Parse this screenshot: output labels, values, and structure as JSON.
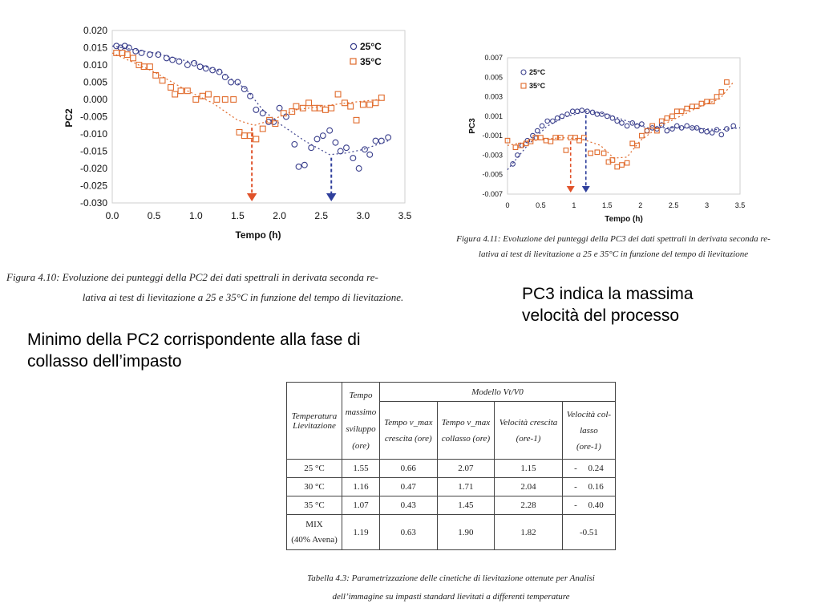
{
  "figure_pc2": {
    "caption_line1": "Figura 4.10: Evoluzione dei punteggi della PC2 dei dati spettrali in derivata seconda re-",
    "caption_line2": "lativa ai test di lievitazione a 25 e 35°C in funzione del tempo di lievitazione."
  },
  "figure_pc3": {
    "caption_line1": "Figura 4.11: Evoluzione dei punteggi della PC3 dei dati spettrali in derivata seconda re-",
    "caption_line2": "lativa ai test di lievitazione a 25 e 35°C in funzione del tempo di lievitazione"
  },
  "notes": {
    "pc3_line1": "PC3 indica la massima",
    "pc3_line2": "velocità del processo",
    "pc2_line1": "Minimo della PC2 corrispondente alla fase di",
    "pc2_line2": "collasso dell’impasto"
  },
  "table": {
    "header": {
      "temp_line1": "Temperatura",
      "temp_line2": "Lievitazione",
      "tmax_line1": "Tempo",
      "tmax_line2": "massimo",
      "tmax_line3": "sviluppo",
      "tmax_line4": "(ore)",
      "model": "Modello Vt/V0",
      "c1_line1": "Tempo v_max",
      "c1_line2": "crescita (ore)",
      "c2_line1": "Tempo v_max",
      "c2_line2": "collasso (ore)",
      "c3_line1": "Velocità crescita",
      "c3_line2": "(ore-1)",
      "c4_line1": "Velocità col-",
      "c4_line2": "lasso",
      "c4_line3": "(ore-1)"
    },
    "rows": [
      {
        "temp": "25 °C",
        "tmax": "1.55",
        "c1": "0.66",
        "c2": "2.07",
        "c3": "1.15",
        "c4": "-     0.24"
      },
      {
        "temp": "30 °C",
        "tmax": "1.16",
        "c1": "0.47",
        "c2": "1.71",
        "c3": "2.04",
        "c4": "-     0.16"
      },
      {
        "temp": "35 °C",
        "tmax": "1.07",
        "c1": "0.43",
        "c2": "1.45",
        "c3": "2.28",
        "c4": "-     0.40"
      },
      {
        "temp_line1": "MIX",
        "temp_line2": "(40% Avena)",
        "tmax": "1.19",
        "c1": "0.63",
        "c2": "1.90",
        "c3": "1.82",
        "c4": "-0.51"
      }
    ],
    "caption_line1": "Tabella 4.3: Parametrizzazione delle cinetiche di lievitazione ottenute per Analisi",
    "caption_line2": "dell’immagine su impasti standard lievitati a differenti temperature"
  },
  "chart_data": [
    {
      "type": "scatter",
      "xlabel": "Tempo (h)",
      "ylabel": "PC2",
      "xlim": [
        0.0,
        3.5
      ],
      "ylim": [
        -0.03,
        0.02
      ],
      "x_ticks": [
        "0.0",
        "0.5",
        "1.0",
        "1.5",
        "2.0",
        "2.5",
        "3.0",
        "3.5"
      ],
      "y_ticks": [
        "0.020",
        "0.015",
        "0.010",
        "0.005",
        "0.000",
        "-0.005",
        "-0.010",
        "-0.015",
        "-0.020",
        "-0.025",
        "-0.030"
      ],
      "legend_position": "top-right",
      "colors": {
        "s25": "#3a3f8c",
        "s35": "#e06a2b",
        "arrow35": "#e0522a",
        "arrow25": "#2f3f9c"
      },
      "series": [
        {
          "name": "25°C",
          "marker": "circle",
          "x": [
            0.05,
            0.1,
            0.15,
            0.2,
            0.28,
            0.35,
            0.45,
            0.55,
            0.65,
            0.72,
            0.8,
            0.9,
            0.98,
            1.05,
            1.12,
            1.2,
            1.28,
            1.35,
            1.42,
            1.5,
            1.58,
            1.65,
            1.72,
            1.8,
            1.87,
            1.93,
            2.0,
            2.08,
            2.18,
            2.23,
            2.3,
            2.38,
            2.45,
            2.52,
            2.6,
            2.67,
            2.73,
            2.8,
            2.88,
            2.95,
            3.02,
            3.08,
            3.15,
            3.22,
            3.3
          ],
          "y": [
            0.0155,
            0.015,
            0.0155,
            0.015,
            0.014,
            0.0135,
            0.013,
            0.013,
            0.012,
            0.0115,
            0.011,
            0.01,
            0.0105,
            0.0095,
            0.009,
            0.0085,
            0.008,
            0.0065,
            0.005,
            0.005,
            0.003,
            0.001,
            -0.003,
            -0.004,
            -0.0065,
            -0.0065,
            -0.0025,
            -0.005,
            -0.013,
            -0.0195,
            -0.019,
            -0.014,
            -0.0115,
            -0.0105,
            -0.009,
            -0.0125,
            -0.015,
            -0.014,
            -0.017,
            -0.02,
            -0.0145,
            -0.016,
            -0.012,
            -0.012,
            -0.011
          ]
        },
        {
          "name": "35°C",
          "marker": "square",
          "x": [
            0.05,
            0.12,
            0.18,
            0.25,
            0.32,
            0.38,
            0.45,
            0.52,
            0.6,
            0.7,
            0.75,
            0.82,
            0.9,
            1.0,
            1.08,
            1.15,
            1.25,
            1.35,
            1.45,
            1.52,
            1.58,
            1.65,
            1.72,
            1.8,
            1.88,
            1.95,
            2.05,
            2.15,
            2.2,
            2.28,
            2.35,
            2.42,
            2.48,
            2.55,
            2.62,
            2.7,
            2.78,
            2.85,
            2.92,
            3.0,
            3.08,
            3.15,
            3.22
          ],
          "y": [
            0.0135,
            0.0135,
            0.013,
            0.012,
            0.01,
            0.0095,
            0.0095,
            0.007,
            0.0055,
            0.0035,
            0.0015,
            0.0025,
            0.0025,
            0.0,
            0.001,
            0.0015,
            0.0,
            0.0,
            0.0,
            -0.0095,
            -0.0105,
            -0.0105,
            -0.0115,
            -0.0085,
            -0.006,
            -0.007,
            -0.004,
            -0.0035,
            -0.002,
            -0.0025,
            -0.001,
            -0.0025,
            -0.0025,
            -0.003,
            -0.0025,
            0.0015,
            -0.001,
            -0.002,
            -0.006,
            -0.0015,
            -0.0015,
            -0.001,
            0.0005
          ]
        }
      ],
      "trend_25": {
        "x": [
          0.0,
          0.5,
          1.0,
          1.3,
          1.6,
          1.8,
          2.0,
          2.3,
          2.6,
          2.8,
          3.0,
          3.3
        ],
        "y": [
          0.0155,
          0.0135,
          0.0105,
          0.008,
          0.003,
          -0.003,
          -0.007,
          -0.012,
          -0.016,
          -0.0155,
          -0.0145,
          -0.012
        ]
      },
      "trend_35": {
        "x": [
          0.0,
          0.5,
          0.9,
          1.2,
          1.5,
          1.7,
          1.9,
          2.2,
          2.5,
          2.8,
          3.2
        ],
        "y": [
          0.0135,
          0.008,
          0.0025,
          -0.001,
          -0.006,
          -0.0075,
          -0.006,
          -0.003,
          -0.002,
          -0.001,
          0.0
        ]
      },
      "arrows": [
        {
          "series": "35°C",
          "x": 1.67
        },
        {
          "series": "25°C",
          "x": 2.62
        }
      ]
    },
    {
      "type": "scatter",
      "xlabel": "Tempo (h)",
      "ylabel": "PC3",
      "xlim": [
        0.0,
        3.5
      ],
      "ylim": [
        -0.007,
        0.007
      ],
      "x_ticks": [
        "0",
        "0.5",
        "1",
        "1.5",
        "2",
        "2.5",
        "3",
        "3.5"
      ],
      "y_ticks": [
        "0.007",
        "0.005",
        "0.003",
        "0.001",
        "-0.001",
        "-0.003",
        "-0.005",
        "-0.007"
      ],
      "legend_position": "top-left",
      "colors": {
        "s25": "#3a3f8c",
        "s35": "#e06a2b",
        "arrow35": "#e0522a",
        "arrow25": "#2f3f9c"
      },
      "series": [
        {
          "name": "25°C",
          "marker": "circle",
          "x": [
            0.08,
            0.15,
            0.22,
            0.3,
            0.38,
            0.45,
            0.52,
            0.6,
            0.68,
            0.75,
            0.82,
            0.9,
            0.98,
            1.05,
            1.12,
            1.2,
            1.28,
            1.35,
            1.42,
            1.5,
            1.58,
            1.65,
            1.72,
            1.8,
            1.88,
            1.95,
            2.02,
            2.1,
            2.18,
            2.25,
            2.32,
            2.4,
            2.48,
            2.55,
            2.62,
            2.7,
            2.78,
            2.85,
            2.92,
            3.0,
            3.08,
            3.15,
            3.22,
            3.3,
            3.4
          ],
          "y": [
            -0.0039,
            -0.003,
            -0.002,
            -0.0015,
            -0.001,
            -0.0005,
            0.0,
            0.0005,
            0.0005,
            0.0008,
            0.001,
            0.0012,
            0.0015,
            0.0015,
            0.0016,
            0.0015,
            0.0014,
            0.0012,
            0.0012,
            0.001,
            0.0008,
            0.0005,
            0.0003,
            0.0,
            0.0003,
            0.0,
            0.0002,
            -0.0005,
            -0.0002,
            -0.0003,
            0.0001,
            -0.0005,
            -0.0003,
            0.0,
            -0.0002,
            0.0,
            -0.0002,
            -0.0002,
            -0.0005,
            -0.0006,
            -0.0007,
            -0.0004,
            -0.0009,
            -0.0003,
            0.0
          ]
        },
        {
          "name": "35°C",
          "marker": "square",
          "x": [
            0.0,
            0.12,
            0.2,
            0.28,
            0.35,
            0.42,
            0.5,
            0.58,
            0.65,
            0.72,
            0.8,
            0.88,
            0.95,
            1.02,
            1.08,
            1.15,
            1.25,
            1.35,
            1.45,
            1.52,
            1.58,
            1.65,
            1.72,
            1.8,
            1.88,
            1.95,
            2.02,
            2.1,
            2.18,
            2.25,
            2.32,
            2.4,
            2.48,
            2.55,
            2.62,
            2.7,
            2.78,
            2.85,
            2.92,
            3.0,
            3.08,
            3.15,
            3.22,
            3.3
          ],
          "y": [
            -0.0015,
            -0.0022,
            -0.002,
            -0.0018,
            -0.0016,
            -0.0012,
            -0.0012,
            -0.0015,
            -0.0016,
            -0.0012,
            -0.0012,
            -0.0025,
            -0.0012,
            -0.0012,
            -0.0015,
            -0.0012,
            -0.0028,
            -0.0027,
            -0.0028,
            -0.0037,
            -0.0035,
            -0.0042,
            -0.004,
            -0.0038,
            -0.0018,
            -0.002,
            -0.001,
            -0.0005,
            0.0,
            -0.0005,
            0.0005,
            0.0008,
            0.001,
            0.0015,
            0.0015,
            0.0018,
            0.002,
            0.002,
            0.0023,
            0.0025,
            0.0025,
            0.003,
            0.0035,
            0.0045
          ]
        }
      ],
      "trend_25": {
        "x": [
          0.0,
          0.3,
          0.6,
          0.9,
          1.2,
          1.5,
          1.8,
          2.1,
          2.4,
          2.8,
          3.2,
          3.5
        ],
        "y": [
          -0.0045,
          -0.002,
          0.0,
          0.001,
          0.0015,
          0.0012,
          0.0005,
          -0.0002,
          -0.0002,
          -0.0002,
          -0.0004,
          -0.0002
        ]
      },
      "trend_35": {
        "x": [
          0.0,
          0.4,
          0.8,
          1.1,
          1.4,
          1.6,
          1.8,
          2.0,
          2.3,
          2.6,
          2.9,
          3.2,
          3.4
        ],
        "y": [
          -0.002,
          -0.0015,
          -0.0012,
          -0.0013,
          -0.002,
          -0.0033,
          -0.0032,
          -0.0015,
          0.0,
          0.001,
          0.002,
          0.0028,
          0.0045
        ]
      },
      "arrows": [
        {
          "series": "35°C",
          "x": 0.95
        },
        {
          "series": "25°C",
          "x": 1.18
        }
      ]
    }
  ]
}
